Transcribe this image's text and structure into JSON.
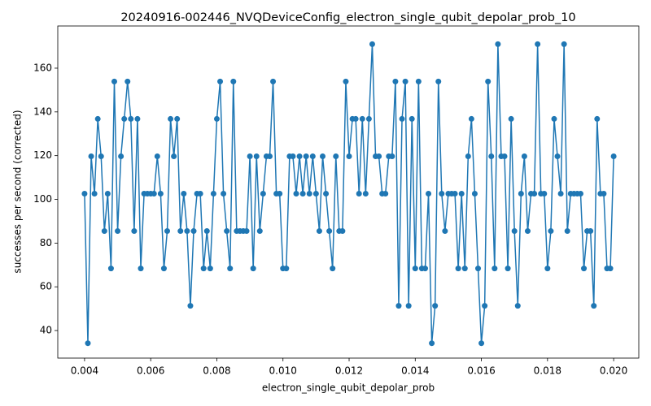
{
  "chart_data": {
    "type": "line",
    "title": "20240916-002446_NVQDeviceConfig_electron_single_qubit_depolar_prob_10",
    "x_label": "electron_single_qubit_depolar_prob",
    "y_label": "successes per second (corrected)",
    "color": "#1f77b4",
    "marker": true,
    "xlim": [
      0.00319,
      0.02076
    ],
    "ylim": [
      27.4,
      179.3
    ],
    "xticks": [
      0.004,
      0.006,
      0.008,
      {
        "value": 0.01,
        "label": "0.010"
      },
      0.012,
      0.014,
      0.016,
      0.018,
      {
        "value": 0.02,
        "label": "0.020"
      }
    ],
    "yticks": [
      40,
      60,
      80,
      100,
      120,
      140,
      160
    ],
    "x": [
      0.004,
      0.0041,
      0.0042,
      0.0043,
      0.0044,
      0.0045,
      0.0046,
      0.0047,
      0.0048,
      0.0049,
      0.005,
      0.0051,
      0.0052,
      0.0053,
      0.0054,
      0.0055,
      0.0056,
      0.0057,
      0.0058,
      0.0059,
      0.006,
      0.0061,
      0.0062,
      0.0063,
      0.0064,
      0.0065,
      0.0066,
      0.0067,
      0.0068,
      0.0069,
      0.007,
      0.0071,
      0.0072,
      0.0073,
      0.0074,
      0.0075,
      0.0076,
      0.0077,
      0.0078,
      0.0079,
      0.008,
      0.0081,
      0.0082,
      0.0083,
      0.0084,
      0.0085,
      0.0086,
      0.0087,
      0.0088,
      0.0089,
      0.009,
      0.0091,
      0.0092,
      0.0093,
      0.0094,
      0.0095,
      0.0096,
      0.0097,
      0.0098,
      0.0099,
      0.01,
      0.0101,
      0.0102,
      0.0103,
      0.0104,
      0.0105,
      0.0106,
      0.0107,
      0.0108,
      0.0109,
      0.011,
      0.0111,
      0.0112,
      0.0113,
      0.0114,
      0.0115,
      0.0116,
      0.0117,
      0.0118,
      0.0119,
      0.012,
      0.0121,
      0.0122,
      0.0123,
      0.0124,
      0.0125,
      0.0126,
      0.0127,
      0.0128,
      0.0129,
      0.013,
      0.0131,
      0.0132,
      0.0133,
      0.0134,
      0.0135,
      0.0136,
      0.0137,
      0.0138,
      0.0139,
      0.014,
      0.0141,
      0.0142,
      0.0143,
      0.0144,
      0.0145,
      0.0146,
      0.0147,
      0.0148,
      0.0149,
      0.015,
      0.0151,
      0.0152,
      0.0153,
      0.0154,
      0.0155,
      0.0156,
      0.0157,
      0.0158,
      0.0159,
      0.016,
      0.0161,
      0.0162,
      0.0163,
      0.0164,
      0.0165,
      0.0166,
      0.0167,
      0.0168,
      0.0169,
      0.017,
      0.0171,
      0.0172,
      0.0173,
      0.0174,
      0.0175,
      0.0176,
      0.0177,
      0.0178,
      0.0179,
      0.018,
      0.0181,
      0.0182,
      0.0183,
      0.0184,
      0.0185,
      0.0186,
      0.0187,
      0.0188,
      0.0189,
      0.019,
      0.0191,
      0.0192,
      0.0193,
      0.0194,
      0.0195,
      0.0196,
      0.0197,
      0.0198,
      0.0199,
      0.02
    ],
    "values": [
      102.6,
      34.2,
      119.7,
      102.6,
      136.8,
      119.7,
      85.5,
      102.6,
      68.4,
      153.9,
      85.5,
      119.7,
      136.8,
      153.9,
      136.8,
      85.5,
      136.8,
      68.4,
      102.6,
      102.6,
      102.6,
      102.6,
      119.7,
      102.6,
      68.4,
      85.5,
      136.8,
      119.7,
      136.8,
      85.5,
      102.6,
      85.5,
      51.3,
      85.5,
      102.6,
      102.6,
      68.4,
      85.5,
      68.4,
      102.6,
      136.8,
      153.9,
      102.6,
      85.5,
      68.4,
      153.9,
      85.5,
      85.5,
      85.5,
      85.5,
      119.7,
      68.4,
      119.7,
      85.5,
      102.6,
      119.7,
      119.7,
      153.9,
      102.6,
      102.6,
      68.4,
      68.4,
      119.7,
      119.7,
      102.6,
      119.7,
      102.6,
      119.7,
      102.6,
      119.7,
      102.6,
      85.5,
      119.7,
      102.6,
      85.5,
      68.4,
      119.7,
      85.5,
      85.5,
      153.9,
      119.7,
      136.8,
      136.8,
      102.6,
      136.8,
      102.6,
      136.8,
      171,
      119.7,
      119.7,
      102.6,
      102.6,
      119.7,
      119.7,
      153.9,
      51.3,
      136.8,
      153.9,
      51.3,
      136.8,
      68.4,
      153.9,
      68.4,
      68.4,
      102.6,
      34.2,
      51.3,
      153.9,
      102.6,
      85.5,
      102.6,
      102.6,
      102.6,
      68.4,
      102.6,
      68.4,
      119.7,
      136.8,
      102.6,
      68.4,
      34.2,
      51.3,
      153.9,
      119.7,
      68.4,
      171,
      119.7,
      119.7,
      68.4,
      136.8,
      85.5,
      51.3,
      102.6,
      119.7,
      85.5,
      102.6,
      102.6,
      171,
      102.6,
      102.6,
      68.4,
      85.5,
      136.8,
      119.7,
      102.6,
      171,
      85.5,
      102.6,
      102.6,
      102.6,
      102.6,
      68.4,
      85.5,
      85.5,
      51.3,
      136.8,
      102.6,
      102.6,
      68.4,
      68.4,
      119.7
    ]
  }
}
